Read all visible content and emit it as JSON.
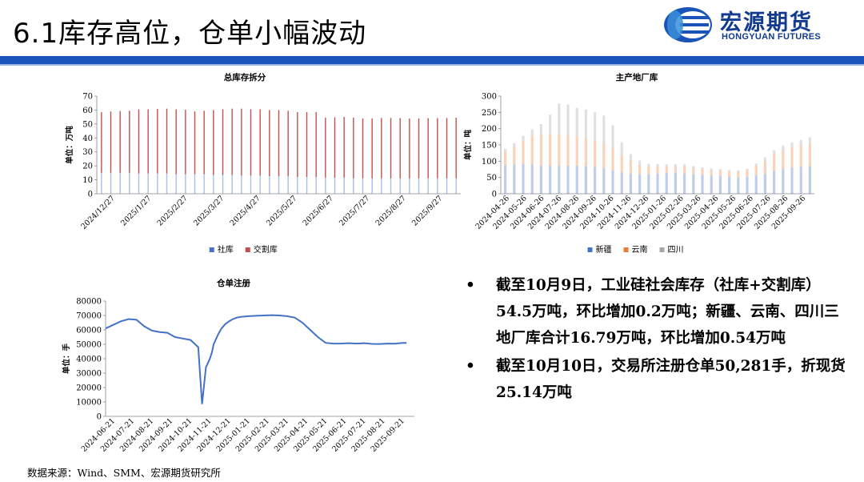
{
  "header": {
    "title": "6.1库存高位，仓单小幅波动",
    "logo_cn": "宏源期货",
    "logo_en": "HONGYUAN FUTURES",
    "brand_color": "#1a54b8"
  },
  "chart_data": [
    {
      "type": "bar",
      "stacked": true,
      "title": "总库存拆分",
      "ylabel": "单位：万吨",
      "ylim": [
        0,
        70
      ],
      "yticks": [
        0,
        10,
        20,
        30,
        40,
        50,
        60,
        70
      ],
      "xticks": [
        "2024/12/27",
        "2025/1/27",
        "2025/2/27",
        "2025/3/27",
        "2025/4/27",
        "2025/5/27",
        "2025/6/27",
        "2025/7/27",
        "2025/8/27",
        "2025/9/27"
      ],
      "legend_position": "bottom",
      "series": [
        {
          "name": "社库",
          "color": "#4472c4",
          "values": [
            15,
            15,
            15,
            15,
            14.5,
            14.5,
            14.5,
            14.5,
            14,
            14,
            14,
            14,
            13.5,
            13.5,
            13.5,
            13,
            13,
            13,
            12.5,
            12.5,
            12.5,
            12,
            12,
            12,
            11.5,
            11.5,
            11.5,
            11,
            11,
            11,
            11,
            11,
            11,
            11,
            11,
            11,
            11,
            11,
            11
          ]
        },
        {
          "name": "交割库",
          "color": "#c0504d",
          "values": [
            43.5,
            44,
            44.3,
            44.5,
            46,
            46,
            46.3,
            46.5,
            46.5,
            46.2,
            45,
            45.5,
            46.5,
            47,
            47.5,
            48,
            47.5,
            47.5,
            47.5,
            47.5,
            47,
            46.5,
            46.5,
            46.5,
            43,
            43.3,
            43.5,
            43.5,
            43,
            43,
            43.3,
            43.3,
            43.2,
            43,
            43,
            43.2,
            43.2,
            43.3,
            43.5
          ]
        }
      ]
    },
    {
      "type": "area",
      "stacked": true,
      "title": "主产地厂库",
      "ylabel": "单位：吨",
      "ylim": [
        0,
        300
      ],
      "yticks": [
        0,
        50,
        100,
        150,
        200,
        250,
        300
      ],
      "xticks": [
        "2024-04-26",
        "2024-05-26",
        "2024-06-26",
        "2024-07-26",
        "2024-08-26",
        "2024-09-26",
        "2024-10-26",
        "2024-11-26",
        "2024-12-26",
        "2025-01-26",
        "2025-02-26",
        "2025-03-26",
        "2025-04-26",
        "2025-05-26",
        "2025-06-26",
        "2025-07-26",
        "2025-08-26",
        "2025-09-26"
      ],
      "legend_position": "bottom",
      "series": [
        {
          "name": "新疆",
          "color": "#4472c4",
          "values": [
            88,
            90,
            92,
            90,
            87,
            86,
            86,
            86,
            86,
            85,
            82,
            78,
            72,
            66,
            62,
            60,
            60,
            62,
            64,
            65,
            62,
            60,
            58,
            56,
            55,
            52,
            50,
            52,
            56,
            62,
            70,
            76,
            80,
            83,
            85
          ]
        },
        {
          "name": "云南",
          "color": "#ed7d31",
          "values": [
            42,
            55,
            72,
            88,
            95,
            97,
            96,
            93,
            88,
            85,
            82,
            78,
            68,
            52,
            40,
            30,
            24,
            22,
            20,
            20,
            22,
            20,
            18,
            17,
            16,
            16,
            17,
            20,
            30,
            40,
            52,
            58,
            62,
            64,
            68
          ]
        },
        {
          "name": "四川",
          "color": "#a5a5a5",
          "values": [
            8,
            10,
            14,
            20,
            32,
            60,
            95,
            95,
            90,
            88,
            86,
            84,
            70,
            40,
            20,
            12,
            8,
            7,
            6,
            6,
            6,
            5,
            5,
            5,
            5,
            5,
            5,
            5,
            7,
            10,
            12,
            14,
            16,
            18,
            20
          ]
        }
      ]
    },
    {
      "type": "line",
      "title": "仓单注册",
      "ylabel": "单位：手",
      "ylim": [
        0,
        80000
      ],
      "yticks": [
        0,
        10000,
        20000,
        30000,
        40000,
        50000,
        60000,
        70000,
        80000
      ],
      "xticks": [
        "2024-06-21",
        "2024-07-21",
        "2024-08-21",
        "2024-09-21",
        "2024-10-21",
        "2024-11-21",
        "2024-12-21",
        "2025-01-21",
        "2025-02-21",
        "2025-03-21",
        "2025-04-21",
        "2025-05-21",
        "2025-06-21",
        "2025-07-21",
        "2025-08-21",
        "2025-09-21"
      ],
      "series": [
        {
          "name": "",
          "color": "#4472c4",
          "x": [
            0,
            0.4,
            0.8,
            1.2,
            1.6,
            2.0,
            2.4,
            2.8,
            3.2,
            3.6,
            4.0,
            4.4,
            4.8,
            5.0,
            5.2,
            5.3,
            5.4,
            5.5,
            5.6,
            5.8,
            6.0,
            6.2,
            6.4,
            6.6,
            6.8,
            7.0,
            7.4,
            7.8,
            8.2,
            8.6,
            9.0,
            9.4,
            9.8,
            10.2,
            10.6,
            11.0,
            11.4,
            11.8,
            12.2,
            12.6,
            13.0,
            13.4,
            13.8,
            14.2,
            14.6,
            15.0,
            15.4,
            15.6
          ],
          "y": [
            61000,
            63500,
            66000,
            67500,
            67000,
            62500,
            59500,
            58500,
            58000,
            55000,
            54000,
            53000,
            48000,
            8500,
            34000,
            37000,
            40000,
            44000,
            50000,
            56000,
            61000,
            64000,
            66000,
            67500,
            68500,
            69000,
            69500,
            69800,
            70000,
            70200,
            70000,
            69500,
            68500,
            65000,
            60000,
            55000,
            51000,
            50500,
            50500,
            50800,
            50500,
            50800,
            50300,
            50200,
            50500,
            50400,
            51000,
            50900
          ]
        }
      ]
    }
  ],
  "bullets": [
    "截至10月9日，工业硅社会库存（社库+交割库）54.5万吨，环比增加0.2万吨；新疆、云南、四川三地厂库合计16.79万吨，环比增加0.54万吨",
    "截至10月10日，交易所注册仓单50,281手，折现货25.14万吨"
  ],
  "bullet_symbol": "•",
  "source": "数据来源：Wind、SMM、宏源期货研究所"
}
